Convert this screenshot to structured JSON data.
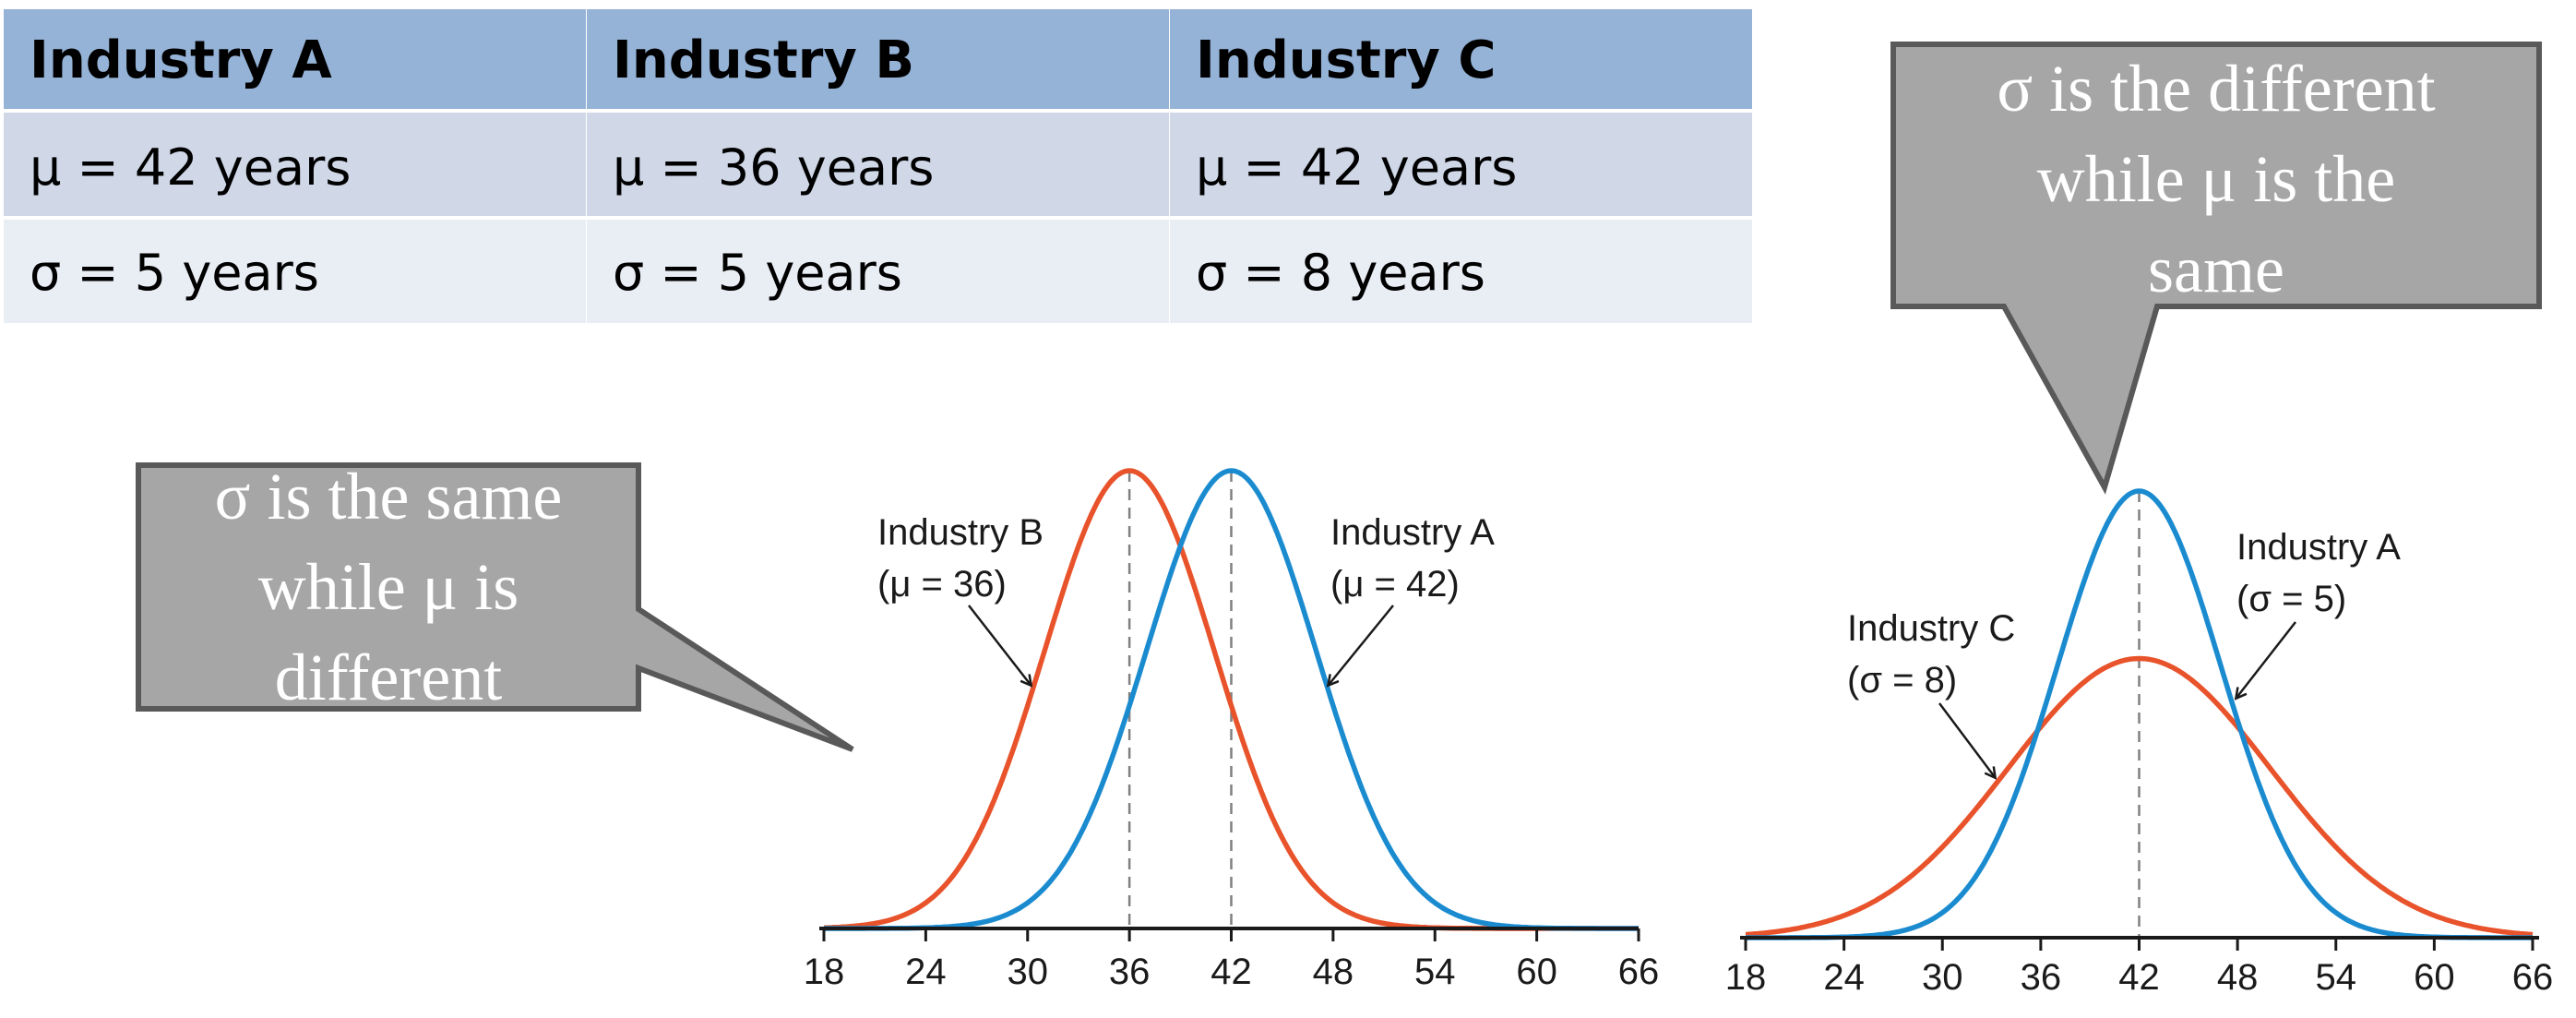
{
  "table": {
    "headers": [
      "Industry A",
      "Industry B",
      "Industry C"
    ],
    "rows": [
      [
        "μ = 42 years",
        "μ = 36 years",
        "μ = 42 years"
      ],
      [
        "σ = 5 years",
        "σ = 5 years",
        "σ = 8 years"
      ]
    ],
    "colors": {
      "header": "#95b3d7",
      "row1": "#d0d8e8",
      "row2": "#e9edf4",
      "border": "#ffffff"
    }
  },
  "callouts": {
    "left": {
      "lines": [
        "σ is the same",
        "while μ is",
        "different"
      ]
    },
    "right": {
      "lines": [
        "σ is the different",
        "while μ is the",
        "same"
      ]
    },
    "colors": {
      "fill": "#a6a6a6",
      "border": "#595959",
      "text": "#ffffff"
    }
  },
  "colors": {
    "orange": "#e8532b",
    "blue": "#1b8bd0",
    "axis": "#1a1a1a",
    "dashed": "#808080"
  },
  "chart_data": [
    {
      "type": "line",
      "xticks": [
        18,
        24,
        30,
        36,
        42,
        48,
        54,
        60,
        66
      ],
      "xlim": [
        18,
        66
      ],
      "grid": false,
      "series": [
        {
          "name": "Industry B",
          "mu": 36,
          "sigma": 5,
          "color": "orange"
        },
        {
          "name": "Industry A",
          "mu": 42,
          "sigma": 5,
          "color": "blue"
        }
      ],
      "annotations": [
        {
          "line1": "Industry B",
          "line2": "(μ = 36)"
        },
        {
          "line1": "Industry A",
          "line2": "(μ = 42)"
        }
      ],
      "dashed_x": [
        36,
        42
      ]
    },
    {
      "type": "line",
      "xticks": [
        18,
        24,
        30,
        36,
        42,
        48,
        54,
        60,
        66
      ],
      "xlim": [
        18,
        66
      ],
      "grid": false,
      "series": [
        {
          "name": "Industry C",
          "mu": 42,
          "sigma": 8,
          "color": "orange"
        },
        {
          "name": "Industry A",
          "mu": 42,
          "sigma": 5,
          "color": "blue"
        }
      ],
      "annotations": [
        {
          "line1": "Industry C",
          "line2": "(σ = 8)"
        },
        {
          "line1": "Industry A",
          "line2": "(σ = 5)"
        }
      ],
      "dashed_x": [
        42
      ]
    }
  ]
}
